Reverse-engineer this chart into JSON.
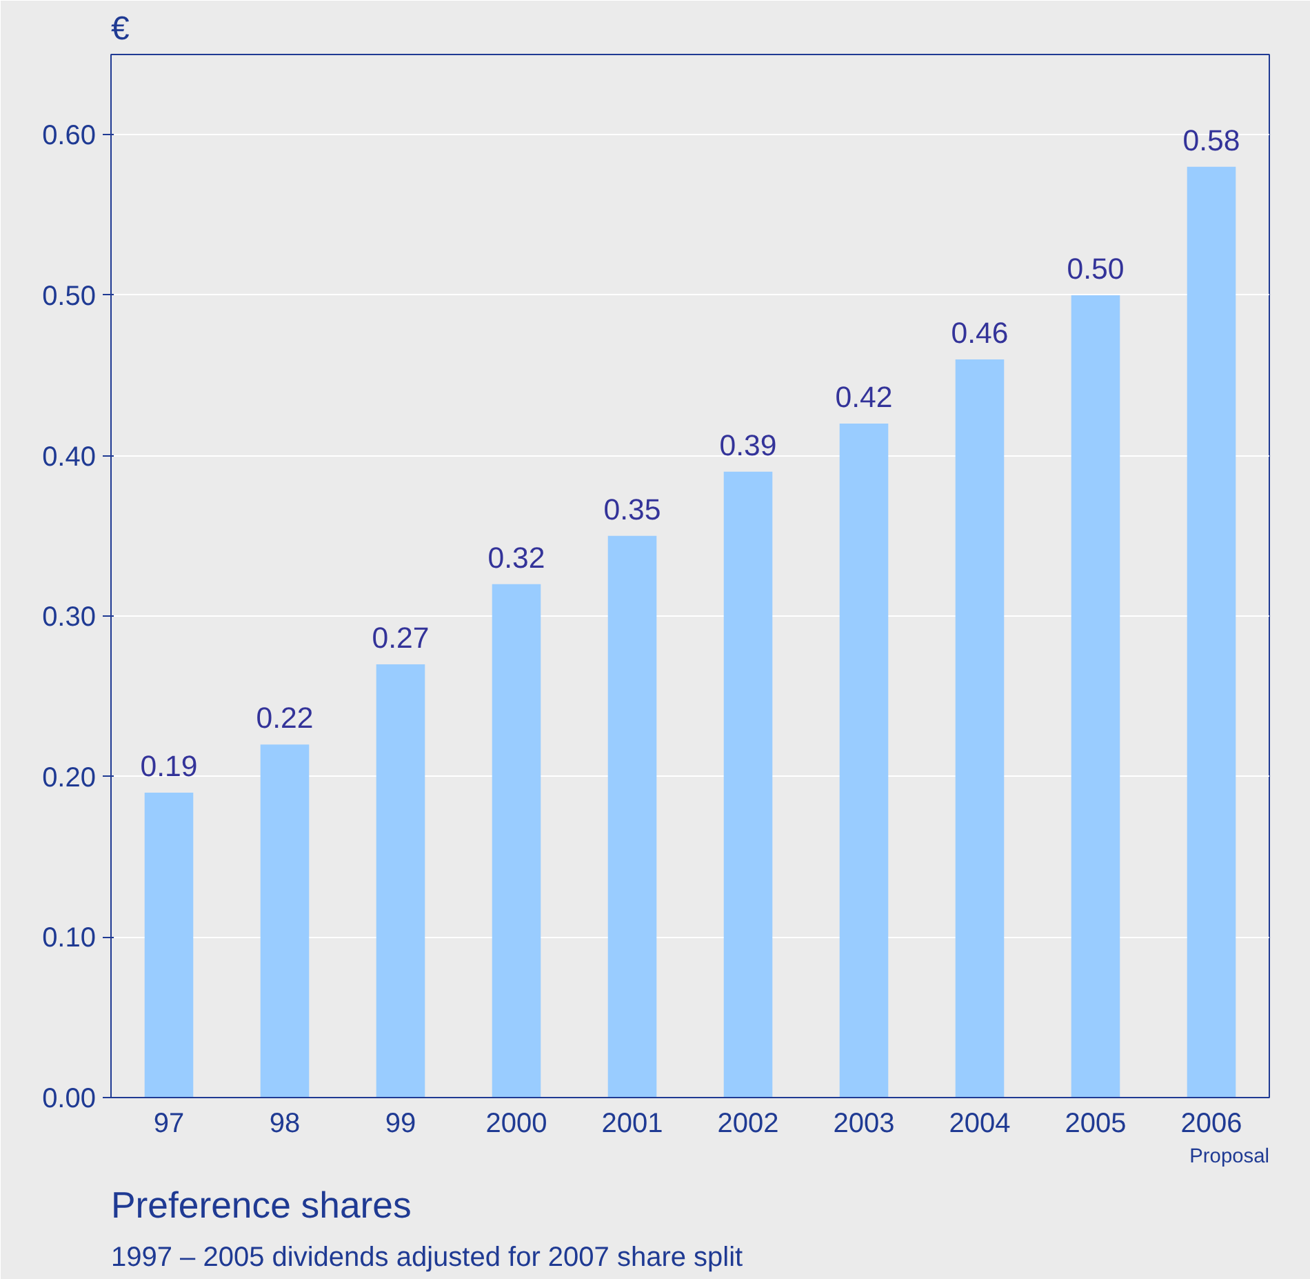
{
  "chart_data": {
    "type": "bar",
    "title": "Preference shares",
    "subtitle": "1997 – 2005 dividends adjusted for 2007 share split",
    "ylabel": "€",
    "categories": [
      "97",
      "98",
      "99",
      "2000",
      "2001",
      "2002",
      "2003",
      "2004",
      "2005",
      "2006"
    ],
    "values": [
      0.19,
      0.22,
      0.27,
      0.32,
      0.35,
      0.39,
      0.42,
      0.46,
      0.5,
      0.58
    ],
    "value_labels": [
      "0.19",
      "0.22",
      "0.27",
      "0.32",
      "0.35",
      "0.39",
      "0.42",
      "0.46",
      "0.50",
      "0.58"
    ],
    "color": "#99ccff",
    "ylim": [
      0,
      0.65
    ],
    "yticks": [
      {
        "value": 0,
        "label": "0.00"
      },
      {
        "value": 0.1,
        "label": "0.10"
      },
      {
        "value": 0.2,
        "label": "0.20"
      },
      {
        "value": 0.3,
        "label": "0.30"
      },
      {
        "value": 0.4,
        "label": "0.40"
      },
      {
        "value": 0.5,
        "label": "0.50"
      },
      {
        "value": 0.6,
        "label": "0.60"
      }
    ],
    "grid": "y",
    "annotations": [
      "Proposal"
    ]
  }
}
